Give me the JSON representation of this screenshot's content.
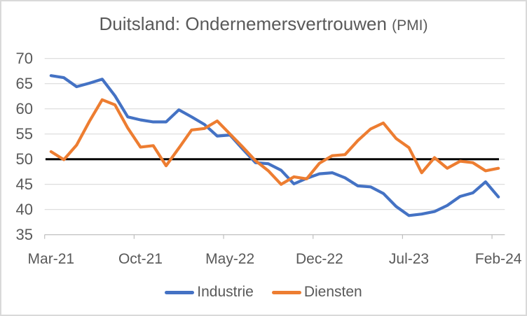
{
  "title": {
    "main": "Duitsland: Ondernemersvertrouwen",
    "suffix": "(PMI)"
  },
  "colors": {
    "industrie": "#4472C4",
    "diensten": "#ED7D31",
    "reference_line": "#000000",
    "gridline": "#D9D9D9",
    "axis_line": "#BFBFBF",
    "text": "#595959"
  },
  "chart_data": {
    "type": "line",
    "title": "Duitsland: Ondernemersvertrouwen (PMI)",
    "x": [
      "Mar-21",
      "Apr-21",
      "May-21",
      "Jun-21",
      "Jul-21",
      "Aug-21",
      "Sep-21",
      "Oct-21",
      "Nov-21",
      "Dec-21",
      "Jan-22",
      "Feb-22",
      "Mar-22",
      "Apr-22",
      "May-22",
      "Jun-22",
      "Jul-22",
      "Aug-22",
      "Sep-22",
      "Oct-22",
      "Nov-22",
      "Dec-22",
      "Jan-23",
      "Feb-23",
      "Mar-23",
      "Apr-23",
      "May-23",
      "Jun-23",
      "Jul-23",
      "Aug-23",
      "Sep-23",
      "Oct-23",
      "Nov-23",
      "Dec-23",
      "Jan-24",
      "Feb-24"
    ],
    "x_tick_labels": [
      "Mar-21",
      "Oct-21",
      "May-22",
      "Dec-22",
      "Jul-23",
      "Feb-24"
    ],
    "x_tick_step": 7,
    "ylim": [
      35,
      70
    ],
    "y_ticks": [
      70,
      65,
      60,
      55,
      50,
      45,
      40,
      35
    ],
    "reference_line": {
      "value": 50,
      "color": "#000000"
    },
    "grid": "horizontal",
    "legend_position": "bottom",
    "series": [
      {
        "name": "Industrie",
        "color": "#4472C4",
        "values": [
          66.6,
          66.2,
          64.4,
          65.1,
          65.9,
          62.6,
          58.4,
          57.8,
          57.4,
          57.4,
          59.8,
          58.4,
          56.9,
          54.6,
          54.8,
          52.0,
          49.3,
          49.1,
          47.8,
          45.1,
          46.2,
          47.1,
          47.3,
          46.3,
          44.7,
          44.5,
          43.2,
          40.6,
          38.8,
          39.1,
          39.6,
          40.8,
          42.6,
          43.3,
          45.5,
          42.5
        ]
      },
      {
        "name": "Diensten",
        "color": "#ED7D31",
        "values": [
          51.5,
          49.9,
          52.8,
          57.5,
          61.8,
          60.8,
          56.2,
          52.4,
          52.7,
          48.7,
          52.2,
          55.8,
          56.1,
          57.6,
          55.0,
          52.4,
          49.7,
          47.7,
          45.0,
          46.5,
          46.1,
          49.2,
          50.7,
          50.9,
          53.7,
          56.0,
          57.2,
          54.1,
          52.3,
          47.3,
          50.3,
          48.2,
          49.6,
          49.3,
          47.7,
          48.2
        ]
      }
    ]
  }
}
